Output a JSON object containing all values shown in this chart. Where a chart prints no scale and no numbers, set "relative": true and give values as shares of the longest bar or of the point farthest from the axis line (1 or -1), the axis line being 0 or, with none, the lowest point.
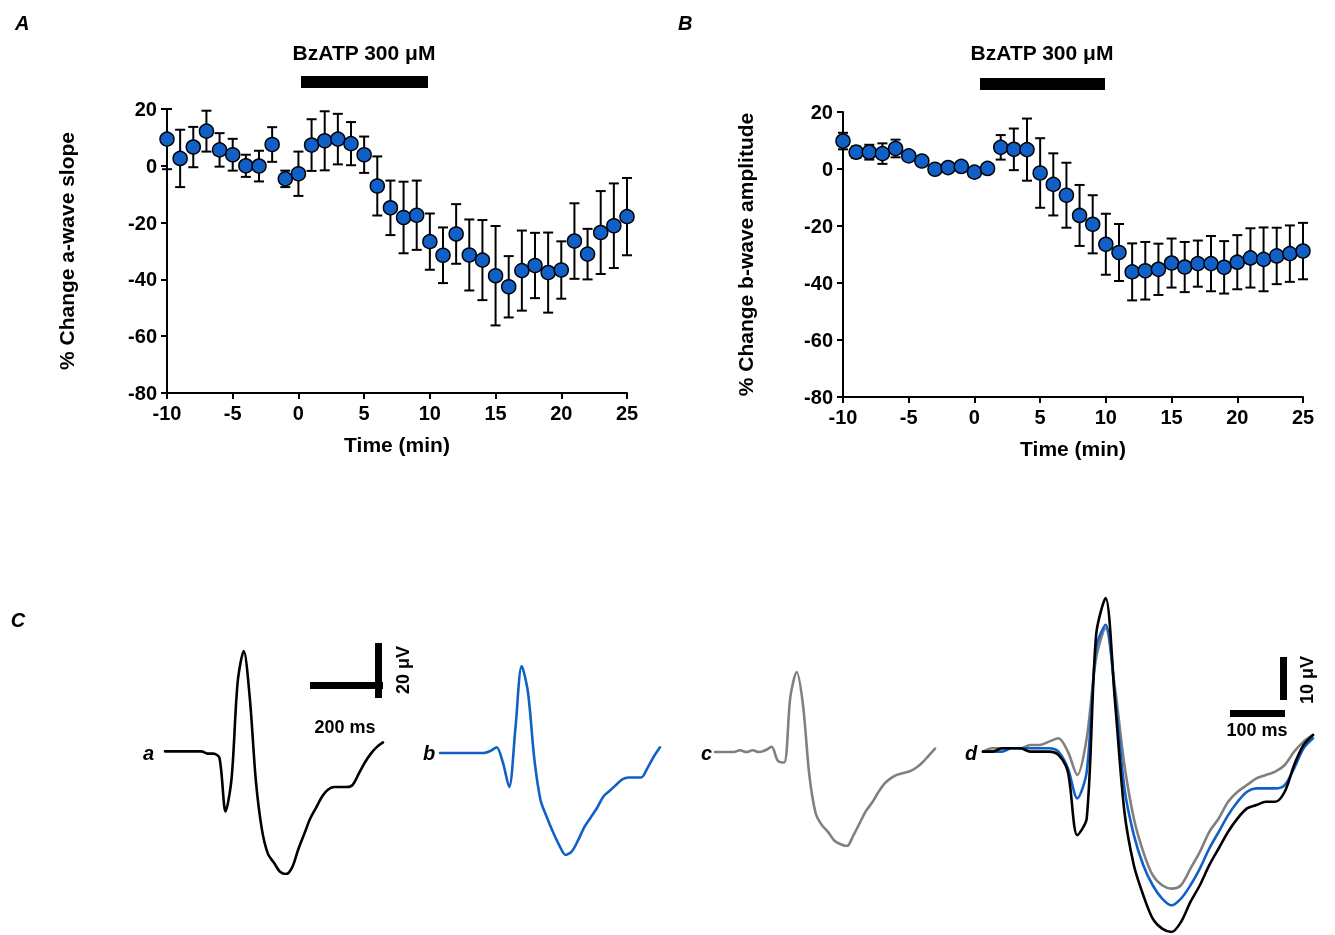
{
  "chart_data": [
    {
      "type": "scatter",
      "title": "A",
      "xlabel": "Time (min)",
      "ylabel": "% Change a-wave slope",
      "marker": "circle",
      "color": "#1060c8",
      "x": [
        -10,
        -9,
        -8,
        -7,
        -6,
        -5,
        -4,
        -3,
        -2,
        -1,
        0,
        1,
        2,
        3,
        4,
        5,
        6,
        7,
        8,
        9,
        10,
        11,
        12,
        13,
        14,
        15,
        16,
        17,
        18,
        19,
        20,
        21,
        22,
        23,
        24,
        25
      ],
      "values": [
        9.4,
        2.6,
        6.6,
        12.2,
        5.6,
        3.9,
        0,
        -0.1,
        7.5,
        -4.6,
        -2.8,
        7.3,
        8.8,
        9.4,
        7.8,
        3.9,
        -7.1,
        -14.8,
        -18.2,
        -17.4,
        -26.7,
        -31.5,
        -24,
        -31.4,
        -33.2,
        -38.7,
        -42.6,
        -36.9,
        -35.1,
        -37.6,
        -36.7,
        -26.5,
        -31.1,
        -23.5,
        -21.1,
        -17.9
      ],
      "errors": [
        10.6,
        10.1,
        7.1,
        7.2,
        5.9,
        5.6,
        3.9,
        5.4,
        6.1,
        2.9,
        7.8,
        9.1,
        10.4,
        8.9,
        7.6,
        6.4,
        10.4,
        9.6,
        12.6,
        12.2,
        9.9,
        9.8,
        10.5,
        12.5,
        14.1,
        17.5,
        10.8,
        14.1,
        11.5,
        14.1,
        10.1,
        13.3,
        8.9,
        14.6,
        14.9,
        13.6
      ],
      "xlim": [
        -10,
        25
      ],
      "xticks": [
        -10,
        -5,
        0,
        5,
        10,
        15,
        20,
        25
      ],
      "ylim": [
        -80,
        20
      ],
      "yticks": [
        -80,
        -60,
        -40,
        -20,
        0,
        20
      ],
      "annotations": [
        "BzATP 300 μM"
      ]
    },
    {
      "type": "scatter",
      "title": "B",
      "xlabel": "Time (min)",
      "ylabel": "% Change b-wave amplitude",
      "marker": "circle",
      "color": "#1060c8",
      "x": [
        -10,
        -9,
        -8,
        -7,
        -6,
        -5,
        -4,
        -3,
        -2,
        -1,
        0,
        1,
        2,
        3,
        4,
        5,
        6,
        7,
        8,
        9,
        10,
        11,
        12,
        13,
        14,
        15,
        16,
        17,
        18,
        19,
        20,
        21,
        22,
        23,
        24,
        25
      ],
      "values": [
        9.8,
        5.9,
        5.9,
        5.4,
        7.2,
        4.6,
        2.8,
        -0.1,
        0.5,
        0.9,
        -1.1,
        0.2,
        7.6,
        6.9,
        6.8,
        -1.4,
        -5.4,
        -9.2,
        -16.3,
        -19.4,
        -26.4,
        -29.3,
        -36.1,
        -35.7,
        -35.2,
        -33,
        -34.4,
        -33.2,
        -33.2,
        -34.5,
        -32.7,
        -31.2,
        -31.7,
        -30.5,
        -29.7,
        -28.8
      ],
      "errors": [
        2.9,
        2,
        2.6,
        3.6,
        3.1,
        null,
        null,
        null,
        null,
        null,
        null,
        null,
        4.3,
        7.3,
        10.9,
        12.2,
        10.9,
        11.4,
        10.7,
        10.2,
        10.7,
        10,
        10,
        10.1,
        9,
        8.6,
        8.8,
        8.1,
        9.7,
        9.2,
        9.5,
        10.4,
        11.2,
        9.9,
        9.9,
        9.9
      ],
      "xlim": [
        -10,
        25
      ],
      "xticks": [
        -10,
        -5,
        0,
        5,
        10,
        15,
        20,
        25
      ],
      "ylim": [
        -80,
        20
      ],
      "yticks": [
        -80,
        -60,
        -40,
        -20,
        0,
        20
      ],
      "annotations": [
        "BzATP 300 μM"
      ]
    },
    {
      "type": "line",
      "title": "a",
      "relative": true,
      "tick_labels": false,
      "annotations": [
        "20 μV",
        "200 ms",
        "C"
      ],
      "categories": [
        null,
        null,
        null,
        null,
        null,
        null,
        null,
        null,
        null,
        null,
        null,
        null,
        null,
        null,
        null,
        null,
        null,
        null,
        null,
        null,
        null,
        null,
        null,
        null,
        null,
        null,
        null,
        null,
        null,
        null,
        null,
        null,
        null,
        null,
        null,
        null,
        null
      ],
      "series": [
        {
          "color": "#000000",
          "values": [
            0.55,
            0.55,
            0.55,
            0.55,
            0.55,
            0.55,
            0.55,
            0.54,
            0.54,
            0.52,
            0.28,
            0.43,
            0.86,
            1,
            0.79,
            0.42,
            0.2,
            0.09,
            0.05,
            0.01,
            0,
            0.03,
            0.11,
            0.18,
            0.25,
            0.3,
            0.35,
            0.38,
            0.39,
            0.39,
            0.39,
            0.4,
            0.45,
            0.5,
            0.54,
            0.57,
            0.59
          ]
        }
      ]
    },
    {
      "type": "line",
      "title": "b",
      "relative": true,
      "tick_labels": false,
      "categories": [
        null,
        null,
        null,
        null,
        null,
        null,
        null,
        null,
        null,
        null,
        null,
        null,
        null,
        null,
        null,
        null,
        null,
        null,
        null,
        null,
        null,
        null,
        null,
        null,
        null,
        null,
        null,
        null,
        null,
        null,
        null,
        null,
        null,
        null,
        null,
        null
      ],
      "series": [
        {
          "color": "#1060c8",
          "values": [
            0.54,
            0.54,
            0.54,
            0.54,
            0.54,
            0.54,
            0.54,
            0.54,
            0.55,
            0.57,
            0.49,
            0.36,
            0.67,
            1,
            0.86,
            0.51,
            0.29,
            0.2,
            0.12,
            0.05,
            0,
            0.02,
            0.08,
            0.15,
            0.2,
            0.25,
            0.31,
            0.34,
            0.37,
            0.4,
            0.41,
            0.41,
            0.41,
            0.46,
            0.52,
            0.57
          ]
        }
      ]
    },
    {
      "type": "line",
      "title": "c",
      "relative": true,
      "tick_labels": false,
      "categories": [
        null,
        null,
        null,
        null,
        null,
        null,
        null,
        null,
        null,
        null,
        null,
        null,
        null,
        null,
        null,
        null,
        null,
        null,
        null,
        null,
        null,
        null,
        null,
        null,
        null,
        null,
        null,
        null,
        null,
        null,
        null,
        null,
        null,
        null,
        null,
        null
      ],
      "series": [
        {
          "color": "#808080",
          "values": [
            0.54,
            0.54,
            0.54,
            0.54,
            0.55,
            0.54,
            0.55,
            0.54,
            0.55,
            0.57,
            0.49,
            0.48,
            0.86,
            1,
            0.81,
            0.41,
            0.19,
            0.12,
            0.08,
            0.03,
            0.01,
            0,
            0.06,
            0.13,
            0.2,
            0.25,
            0.31,
            0.36,
            0.39,
            0.41,
            0.42,
            0.43,
            0.45,
            0.48,
            0.52,
            0.56
          ]
        }
      ]
    },
    {
      "type": "line",
      "title": "d",
      "relative": true,
      "tick_labels": false,
      "annotations": [
        "10 μV",
        "100 ms"
      ],
      "categories": [
        null,
        null,
        null,
        null,
        null,
        null,
        null,
        null,
        null,
        null,
        null,
        null,
        null,
        null,
        null,
        null,
        null,
        null,
        null,
        null,
        null,
        null,
        null,
        null,
        null,
        null,
        null,
        null,
        null,
        null,
        null,
        null,
        null,
        null,
        null,
        null
      ],
      "series": [
        {
          "color": "#808080",
          "values": [
            0.54,
            0.55,
            0.55,
            0.55,
            0.55,
            0.56,
            0.56,
            0.57,
            0.58,
            0.54,
            0.47,
            0.58,
            0.82,
            0.91,
            0.73,
            0.5,
            0.34,
            0.24,
            0.17,
            0.14,
            0.13,
            0.14,
            0.19,
            0.24,
            0.3,
            0.34,
            0.39,
            0.42,
            0.44,
            0.46,
            0.47,
            0.48,
            0.5,
            0.54,
            0.57,
            0.59
          ]
        },
        {
          "color": "#1060c8",
          "values": [
            0.54,
            0.54,
            0.54,
            0.55,
            0.55,
            0.55,
            0.55,
            0.55,
            0.54,
            0.49,
            0.4,
            0.48,
            0.85,
            0.92,
            0.71,
            0.43,
            0.29,
            0.2,
            0.14,
            0.1,
            0.08,
            0.1,
            0.14,
            0.19,
            0.25,
            0.3,
            0.35,
            0.39,
            0.42,
            0.43,
            0.43,
            0.43,
            0.44,
            0.49,
            0.55,
            0.58
          ]
        },
        {
          "color": "#000000",
          "values": [
            0.54,
            0.54,
            0.55,
            0.55,
            0.55,
            0.54,
            0.54,
            0.54,
            0.53,
            0.48,
            0.29,
            0.34,
            0.89,
            1,
            0.69,
            0.36,
            0.2,
            0.11,
            0.04,
            0.01,
            0,
            0.03,
            0.09,
            0.14,
            0.2,
            0.25,
            0.3,
            0.34,
            0.37,
            0.38,
            0.39,
            0.39,
            0.42,
            0.5,
            0.56,
            0.59
          ]
        }
      ]
    }
  ]
}
